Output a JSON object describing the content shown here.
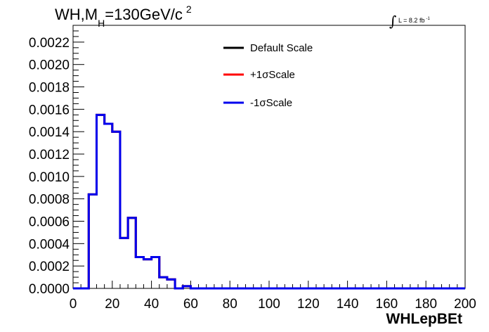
{
  "title": {
    "prefix": "WH,M",
    "subscript": "H",
    "suffix": "=130GeV/c",
    "superscript": "2"
  },
  "lumi": {
    "integral": "∫",
    "text": "L = 8.2 fb",
    "superscript": "-1"
  },
  "chart_data": {
    "type": "histogram",
    "xlabel": "WHLepBEt",
    "ylabel": "",
    "xlim": [
      0,
      200
    ],
    "ylim": [
      0,
      0.00235
    ],
    "x_ticks": [
      0,
      20,
      40,
      60,
      80,
      100,
      120,
      140,
      160,
      180,
      200
    ],
    "y_ticks": [
      "0.0000",
      "0.0002",
      "0.0004",
      "0.0006",
      "0.0008",
      "0.0010",
      "0.0012",
      "0.0014",
      "0.0016",
      "0.0018",
      "0.0020",
      "0.0022"
    ],
    "bin_width": 4,
    "bin_edges_start": 0,
    "series": [
      {
        "name": "Default Scale",
        "color": "#000000",
        "values": [
          0,
          0,
          0.00084,
          0.00155,
          0.00147,
          0.0014,
          0.00045,
          0.00063,
          0.00028,
          0.00026,
          0.00028,
          0.0001,
          8e-05,
          0,
          2e-05,
          0
        ]
      },
      {
        "name": "+1σScale",
        "color": "#ff0000",
        "values": [
          0,
          0,
          0.00084,
          0.00155,
          0.00147,
          0.0014,
          0.00045,
          0.00063,
          0.00028,
          0.00026,
          0.00028,
          0.0001,
          8e-05,
          0,
          2e-05,
          0
        ]
      },
      {
        "name": "-1σScale",
        "color": "#0000ee",
        "values": [
          0,
          0,
          0.00084,
          0.00155,
          0.00147,
          0.0014,
          0.00045,
          0.00063,
          0.00028,
          0.00026,
          0.00028,
          0.0001,
          8e-05,
          0,
          2e-05,
          0
        ]
      }
    ],
    "legend_position": "top-center",
    "grid": false
  }
}
